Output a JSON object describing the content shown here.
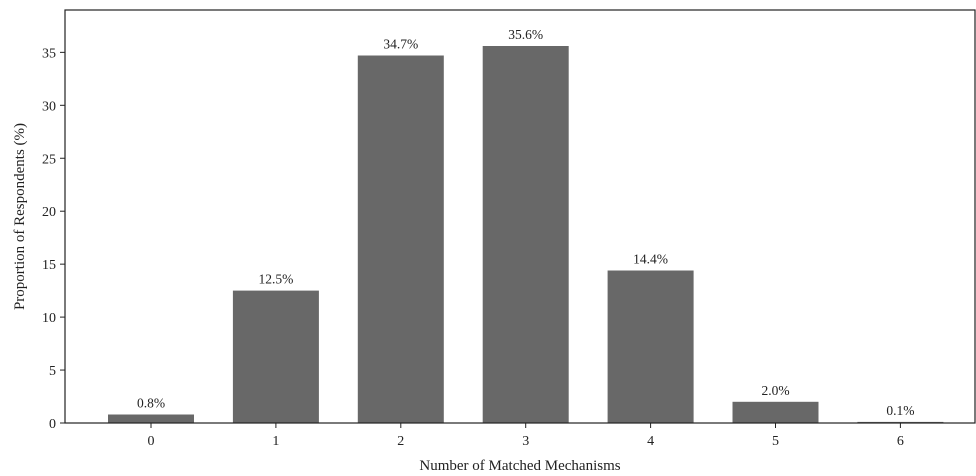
{
  "chart_data": {
    "type": "bar",
    "title": "",
    "xlabel": "Number of Matched Mechanisms",
    "ylabel": "Proportion of Respondents (%)",
    "categories": [
      "0",
      "1",
      "2",
      "3",
      "4",
      "5",
      "6"
    ],
    "values": [
      0.8,
      12.5,
      34.7,
      35.6,
      14.4,
      2.0,
      0.1
    ],
    "value_labels": [
      "0.8%",
      "12.5%",
      "34.7%",
      "35.6%",
      "14.4%",
      "2.0%",
      "0.1%"
    ],
    "yticks": [
      0,
      5,
      10,
      15,
      20,
      25,
      30,
      35
    ],
    "ylim": [
      0,
      39
    ],
    "grid": false,
    "legend": "none",
    "bar_color": "#686868",
    "axis_color": "#222222"
  }
}
